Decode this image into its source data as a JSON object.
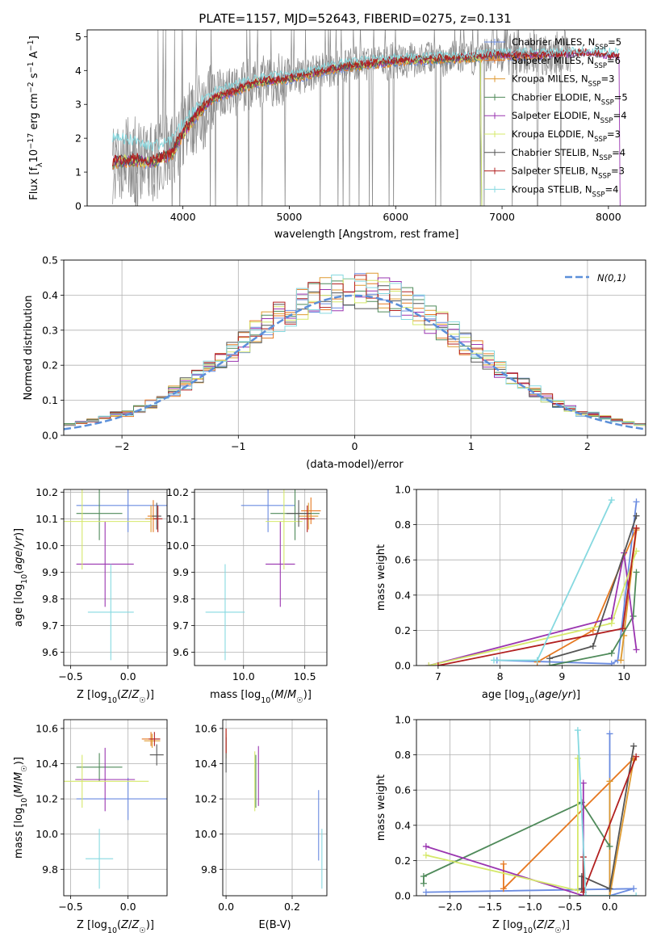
{
  "title": "PLATE=1157, MJD=52643, FIBERID=0275, z=0.131",
  "colors": {
    "Chabrier MILES": "#6a8be0",
    "Salpeter MILES": "#e67820",
    "Kroupa MILES": "#df9a30",
    "Chabrier ELODIE": "#4f8a5a",
    "Salpeter ELODIE": "#9a35b0",
    "Kroupa ELODIE": "#d5e86a",
    "Chabrier STELIB": "#555555",
    "Salpeter STELIB": "#b22020",
    "Kroupa STELIB": "#86d9e0",
    "normal": "#5b8fd9",
    "grey_spec": "#8a8a8a"
  },
  "chart_data": [
    {
      "id": "spectrum",
      "type": "line",
      "xlabel": "wavelength [Angstrom, rest frame]",
      "ylabel": "Flux [f_λ10^-17 erg cm^-2 s^-1 A^-1]",
      "xlim": [
        3100,
        8350
      ],
      "ylim": [
        0,
        5.2
      ],
      "xticks": [
        4000,
        5000,
        6000,
        7000,
        8000
      ],
      "yticks": [
        0,
        1,
        2,
        3,
        4,
        5
      ],
      "grid": false,
      "legend": "top-right",
      "legend_entries": [
        {
          "name": "Chabrier MILES",
          "nssp": "5"
        },
        {
          "name": "Salpeter MILES",
          "nssp": "6"
        },
        {
          "name": "Kroupa MILES",
          "nssp": "3"
        },
        {
          "name": "Chabrier ELODIE",
          "nssp": "5"
        },
        {
          "name": "Salpeter ELODIE",
          "nssp": "4"
        },
        {
          "name": "Kroupa ELODIE",
          "nssp": "3"
        },
        {
          "name": "Chabrier STELIB",
          "nssp": "4"
        },
        {
          "name": "Salpeter STELIB",
          "nssp": "3"
        },
        {
          "name": "Kroupa STELIB",
          "nssp": "4"
        }
      ],
      "continuum": {
        "x": [
          3350,
          3550,
          3700,
          3900,
          4000,
          4150,
          4300,
          4500,
          4700,
          4850,
          5000,
          5200,
          5500,
          5800,
          6100,
          6500,
          6800,
          7000,
          7200,
          7500,
          7800,
          8100
        ],
        "model": [
          1.3,
          1.35,
          1.3,
          1.55,
          2.15,
          2.8,
          3.2,
          3.4,
          3.65,
          3.7,
          3.75,
          3.9,
          4.1,
          4.2,
          4.3,
          4.35,
          4.4,
          4.45,
          4.45,
          4.45,
          4.5,
          4.4
        ],
        "kroupa_stelib": [
          2.0,
          1.85,
          1.7,
          1.9,
          2.4,
          3.0,
          3.35,
          3.55,
          3.75,
          3.8,
          3.85,
          3.95,
          4.2,
          4.3,
          4.35,
          4.4,
          4.45,
          4.5,
          4.5,
          4.5,
          4.55,
          4.5
        ]
      }
    },
    {
      "id": "residuals",
      "type": "histogram",
      "xlabel": "(data-model)/error",
      "ylabel": "Normed distribution",
      "xlim": [
        -2.5,
        2.5
      ],
      "ylim": [
        0,
        0.5
      ],
      "xticks": [
        -2,
        -1,
        0,
        1,
        2
      ],
      "yticks": [
        0.0,
        0.1,
        0.2,
        0.3,
        0.4,
        0.5
      ],
      "grid": true,
      "legend": "top-right",
      "legend_label": "N(0,1)",
      "bin_width": 0.1,
      "bins_start": -2.6
    },
    {
      "id": "age_vs_Z",
      "type": "scatter",
      "xlabel": "Z [log10(Z/Z☉)]",
      "ylabel": "age  [log10(age/yr)]",
      "xlim": [
        -0.56,
        0.34
      ],
      "ylim": [
        9.55,
        10.21
      ],
      "xticks": [
        -0.5,
        0.0
      ],
      "yticks": [
        9.6,
        9.7,
        9.8,
        9.9,
        10.0,
        10.1,
        10.2
      ],
      "grid": true,
      "points": [
        {
          "model": "Chabrier MILES",
          "x": 0.0,
          "xerr": 0.45,
          "y": 10.15,
          "yerr": 0.1
        },
        {
          "model": "Salpeter MILES",
          "x": 0.22,
          "xerr": 0.05,
          "y": 10.11,
          "yerr": 0.06
        },
        {
          "model": "Kroupa MILES",
          "x": 0.2,
          "xerr": 0.05,
          "y": 10.1,
          "yerr": 0.05
        },
        {
          "model": "Chabrier ELODIE",
          "x": -0.25,
          "xerr": 0.2,
          "y": 10.12,
          "yerr": 0.1
        },
        {
          "model": "Salpeter ELODIE",
          "x": -0.2,
          "xerr": 0.25,
          "y": 9.93,
          "yerr": 0.16
        },
        {
          "model": "Kroupa ELODIE",
          "x": -0.4,
          "xerr": 0.6,
          "y": 10.09,
          "yerr": 0.18
        },
        {
          "model": "Chabrier STELIB",
          "x": 0.25,
          "xerr": 0.04,
          "y": 10.11,
          "yerr": 0.05
        },
        {
          "model": "Salpeter STELIB",
          "x": 0.26,
          "xerr": 0.04,
          "y": 10.1,
          "yerr": 0.05
        },
        {
          "model": "Kroupa STELIB",
          "x": -0.15,
          "xerr": 0.2,
          "y": 9.75,
          "yerr": 0.18
        }
      ]
    },
    {
      "id": "age_vs_mass",
      "type": "scatter",
      "xlabel": "mass [log10(M/M☉)]",
      "ylabel": "",
      "xlim": [
        9.6,
        10.68
      ],
      "ylim": [
        9.55,
        10.21
      ],
      "xticks": [
        10.0,
        10.5
      ],
      "yticks": [
        9.6,
        9.7,
        9.8,
        9.9,
        10.0,
        10.1,
        10.2
      ],
      "grid": true,
      "points": [
        {
          "model": "Chabrier MILES",
          "x": 10.2,
          "xerr": 0.22,
          "y": 10.15,
          "yerr": 0.1
        },
        {
          "model": "Salpeter MILES",
          "x": 10.55,
          "xerr": 0.08,
          "y": 10.13,
          "yerr": 0.05
        },
        {
          "model": "Kroupa MILES",
          "x": 10.53,
          "xerr": 0.08,
          "y": 10.11,
          "yerr": 0.05
        },
        {
          "model": "Chabrier ELODIE",
          "x": 10.42,
          "xerr": 0.2,
          "y": 10.12,
          "yerr": 0.1
        },
        {
          "model": "Salpeter ELODIE",
          "x": 10.3,
          "xerr": 0.12,
          "y": 9.93,
          "yerr": 0.16
        },
        {
          "model": "Kroupa ELODIE",
          "x": 10.33,
          "xerr": 0.15,
          "y": 10.09,
          "yerr": 0.18
        },
        {
          "model": "Chabrier STELIB",
          "x": 10.45,
          "xerr": 0.1,
          "y": 10.12,
          "yerr": 0.05
        },
        {
          "model": "Salpeter STELIB",
          "x": 10.52,
          "xerr": 0.06,
          "y": 10.1,
          "yerr": 0.05
        },
        {
          "model": "Kroupa STELIB",
          "x": 9.85,
          "xerr": 0.16,
          "y": 9.75,
          "yerr": 0.18
        }
      ]
    },
    {
      "id": "mass_weight_vs_age",
      "type": "line",
      "xlabel": "age  [log10(age/yr)]",
      "ylabel": "mass weight",
      "xlim": [
        6.65,
        10.35
      ],
      "ylim": [
        0,
        1.0
      ],
      "xticks": [
        7,
        8,
        9,
        10
      ],
      "yticks": [
        0.0,
        0.2,
        0.4,
        0.6,
        0.8,
        1.0
      ],
      "grid": true,
      "series": [
        {
          "model": "Chabrier MILES",
          "x": [
            10.2,
            9.9,
            9.8,
            7.95
          ],
          "y": [
            0.93,
            0.03,
            0.01,
            0.03
          ]
        },
        {
          "model": "Salpeter MILES",
          "x": [
            10.2,
            9.5,
            8.6
          ],
          "y": [
            0.78,
            0.2,
            0.02
          ]
        },
        {
          "model": "Kroupa MILES",
          "x": [
            10.0,
            9.95,
            10.2
          ],
          "y": [
            0.17,
            0.03,
            0.77
          ]
        },
        {
          "model": "Chabrier ELODIE",
          "x": [
            10.2,
            10.15,
            9.8,
            8.8
          ],
          "y": [
            0.53,
            0.28,
            0.07,
            0.0
          ]
        },
        {
          "model": "Salpeter ELODIE",
          "x": [
            10.2,
            10.0,
            9.8,
            6.85
          ],
          "y": [
            0.09,
            0.64,
            0.27,
            0.0
          ]
        },
        {
          "model": "Kroupa ELODIE",
          "x": [
            10.2,
            9.8,
            6.85
          ],
          "y": [
            0.65,
            0.24,
            0.0
          ]
        },
        {
          "model": "Chabrier STELIB",
          "x": [
            10.2,
            9.5,
            8.8
          ],
          "y": [
            0.85,
            0.11,
            0.04
          ]
        },
        {
          "model": "Salpeter STELIB",
          "x": [
            10.2,
            9.98,
            7.0
          ],
          "y": [
            0.78,
            0.21,
            0.0
          ]
        },
        {
          "model": "Kroupa STELIB",
          "x": [
            9.8,
            8.6,
            7.9
          ],
          "y": [
            0.94,
            0.03,
            0.03
          ]
        }
      ]
    },
    {
      "id": "mass_vs_Z",
      "type": "scatter",
      "xlabel": "Z [log10(Z/Z☉)]",
      "ylabel": "mass [log10(M/M☉)]",
      "xlim": [
        -0.56,
        0.34
      ],
      "ylim": [
        9.65,
        10.65
      ],
      "xticks": [
        -0.5,
        0.0
      ],
      "yticks": [
        9.8,
        10.0,
        10.2,
        10.4,
        10.6
      ],
      "grid": true,
      "points": [
        {
          "model": "Chabrier MILES",
          "x": 0.0,
          "xerr": 0.45,
          "y": 10.2,
          "yerr": 0.12
        },
        {
          "model": "Salpeter MILES",
          "x": 0.2,
          "xerr": 0.08,
          "y": 10.54,
          "yerr": 0.04
        },
        {
          "model": "Kroupa MILES",
          "x": 0.21,
          "xerr": 0.07,
          "y": 10.53,
          "yerr": 0.04
        },
        {
          "model": "Chabrier ELODIE",
          "x": -0.25,
          "xerr": 0.2,
          "y": 10.38,
          "yerr": 0.08
        },
        {
          "model": "Salpeter ELODIE",
          "x": -0.2,
          "xerr": 0.26,
          "y": 10.31,
          "yerr": 0.18
        },
        {
          "model": "Kroupa ELODIE",
          "x": -0.4,
          "xerr": 0.58,
          "y": 10.3,
          "yerr": 0.15
        },
        {
          "model": "Chabrier STELIB",
          "x": 0.25,
          "xerr": 0.06,
          "y": 10.45,
          "yerr": 0.06
        },
        {
          "model": "Salpeter STELIB",
          "x": 0.23,
          "xerr": 0.05,
          "y": 10.54,
          "yerr": 0.04
        },
        {
          "model": "Kroupa STELIB",
          "x": -0.25,
          "xerr": 0.12,
          "y": 9.86,
          "yerr": 0.17
        }
      ]
    },
    {
      "id": "mass_vs_ebv",
      "type": "scatter",
      "xlabel": "E(B-V)",
      "ylabel": "",
      "xlim": [
        -0.01,
        0.305
      ],
      "ylim": [
        9.65,
        10.65
      ],
      "xticks": [
        0.0,
        0.2
      ],
      "yticks": [
        9.8,
        10.0,
        10.2,
        10.4,
        10.6
      ],
      "grid": true,
      "points": [
        {
          "model": "Chabrier MILES",
          "x": 0.28,
          "y": 10.05,
          "yerr": 0.2
        },
        {
          "model": "Salpeter MILES",
          "x": 0.0,
          "y": 10.53,
          "yerr": 0.07
        },
        {
          "model": "Kroupa MILES",
          "x": 0.0,
          "y": 10.5,
          "yerr": 0.07
        },
        {
          "model": "Chabrier ELODIE",
          "x": 0.09,
          "y": 10.3,
          "yerr": 0.15
        },
        {
          "model": "Salpeter ELODIE",
          "x": 0.098,
          "y": 10.33,
          "yerr": 0.17
        },
        {
          "model": "Kroupa ELODIE",
          "x": 0.087,
          "y": 10.3,
          "yerr": 0.17
        },
        {
          "model": "Chabrier STELIB",
          "x": 0.0,
          "y": 10.45,
          "yerr": 0.1
        },
        {
          "model": "Salpeter STELIB",
          "x": 0.0,
          "y": 10.53,
          "yerr": 0.07
        },
        {
          "model": "Kroupa STELIB",
          "x": 0.29,
          "y": 9.86,
          "yerr": 0.17
        }
      ]
    },
    {
      "id": "mass_weight_vs_Z",
      "type": "line",
      "xlabel": "Z [log10(Z/Z☉)]",
      "ylabel": "mass weight",
      "xlim": [
        -2.42,
        0.45
      ],
      "ylim": [
        0,
        1.0
      ],
      "xticks": [
        -2.0,
        -1.5,
        -1.0,
        -0.5,
        0.0
      ],
      "yticks": [
        0.0,
        0.2,
        0.4,
        0.6,
        0.8,
        1.0
      ],
      "grid": true,
      "series": [
        {
          "model": "Chabrier MILES",
          "x": [
            0.0,
            0.0,
            0.3,
            -2.3
          ],
          "y": [
            0.92,
            0.0,
            0.04,
            0.02
          ]
        },
        {
          "model": "Salpeter MILES",
          "x": [
            0.3,
            -1.33,
            -1.33
          ],
          "y": [
            0.78,
            0.04,
            0.18
          ]
        },
        {
          "model": "Kroupa MILES",
          "x": [
            0.3,
            0.0,
            0.0
          ],
          "y": [
            0.77,
            0.0,
            0.65
          ]
        },
        {
          "model": "Chabrier ELODIE",
          "x": [
            0.0,
            -0.35,
            -2.33,
            -2.33
          ],
          "y": [
            0.28,
            0.53,
            0.11,
            0.07
          ]
        },
        {
          "model": "Salpeter ELODIE",
          "x": [
            -0.33,
            -0.33,
            -2.3
          ],
          "y": [
            0.64,
            0.0,
            0.28
          ]
        },
        {
          "model": "Kroupa ELODIE",
          "x": [
            -0.4,
            -0.4,
            -2.3
          ],
          "y": [
            0.78,
            0.03,
            0.23
          ]
        },
        {
          "model": "Chabrier STELIB",
          "x": [
            0.3,
            0.0,
            -0.35,
            -0.35
          ],
          "y": [
            0.85,
            0.04,
            0.11,
            0.04
          ]
        },
        {
          "model": "Salpeter STELIB",
          "x": [
            0.33,
            -0.33,
            -0.33
          ],
          "y": [
            0.79,
            0.02,
            0.22
          ]
        },
        {
          "model": "Kroupa STELIB",
          "x": [
            -0.4,
            -0.3,
            0.33
          ],
          "y": [
            0.94,
            0.0,
            0.0
          ]
        }
      ]
    }
  ]
}
